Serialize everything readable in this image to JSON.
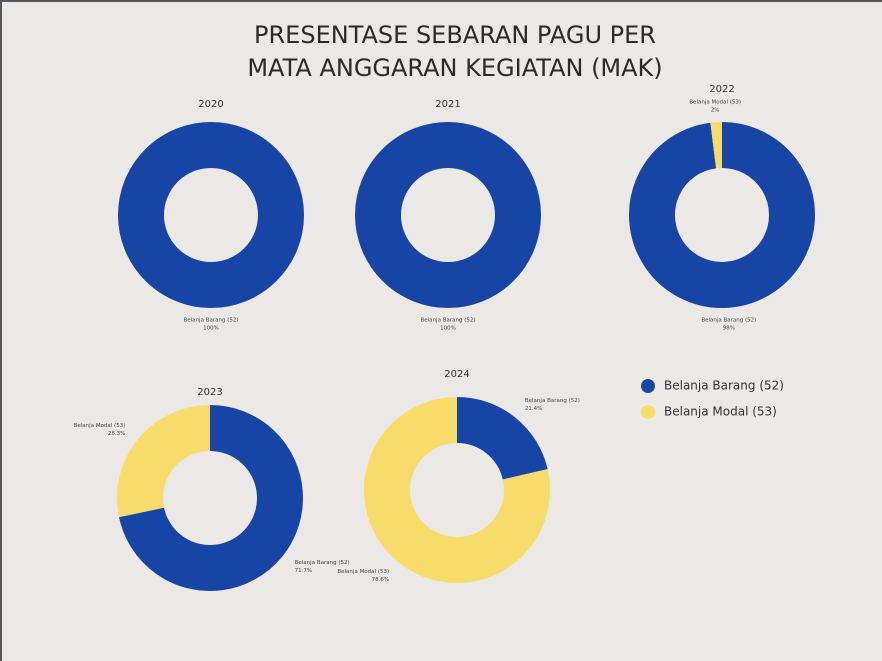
{
  "title": [
    "PRESENTASE SEBARAN PAGU PER",
    "MATA ANGGARAN KEGIATAN (MAK)"
  ],
  "legend": [
    {
      "name": "Belanja Barang (52)",
      "color": "#1745a6"
    },
    {
      "name": "Belanja Modal (53)",
      "color": "#f8dc6b"
    }
  ],
  "chart_data": [
    {
      "type": "donut",
      "title": "2020",
      "categories": [
        "Belanja Barang (52)"
      ],
      "values": [
        100
      ],
      "value_labels": [
        "100%"
      ],
      "colors": [
        "#1745a6"
      ]
    },
    {
      "type": "donut",
      "title": "2021",
      "categories": [
        "Belanja Barang (52)"
      ],
      "values": [
        100
      ],
      "value_labels": [
        "100%"
      ],
      "colors": [
        "#1745a6"
      ]
    },
    {
      "type": "donut",
      "title": "2022",
      "categories": [
        "Belanja Barang (52)",
        "Belanja Modal (53)"
      ],
      "values": [
        98,
        2
      ],
      "value_labels": [
        "98%",
        "2%"
      ],
      "colors": [
        "#1745a6",
        "#f8dc6b"
      ]
    },
    {
      "type": "donut",
      "title": "2023",
      "categories": [
        "Belanja Barang (52)",
        "Belanja Modal (53)"
      ],
      "values": [
        71.7,
        28.3
      ],
      "value_labels": [
        "71.7%",
        "28.3%"
      ],
      "colors": [
        "#1745a6",
        "#f8dc6b"
      ]
    },
    {
      "type": "donut",
      "title": "2024",
      "categories": [
        "Belanja Barang (52)",
        "Belanja Modal (53)"
      ],
      "values": [
        21.4,
        78.6
      ],
      "value_labels": [
        "21.4%",
        "78.6%"
      ],
      "colors": [
        "#1745a6",
        "#f8dc6b"
      ]
    }
  ]
}
